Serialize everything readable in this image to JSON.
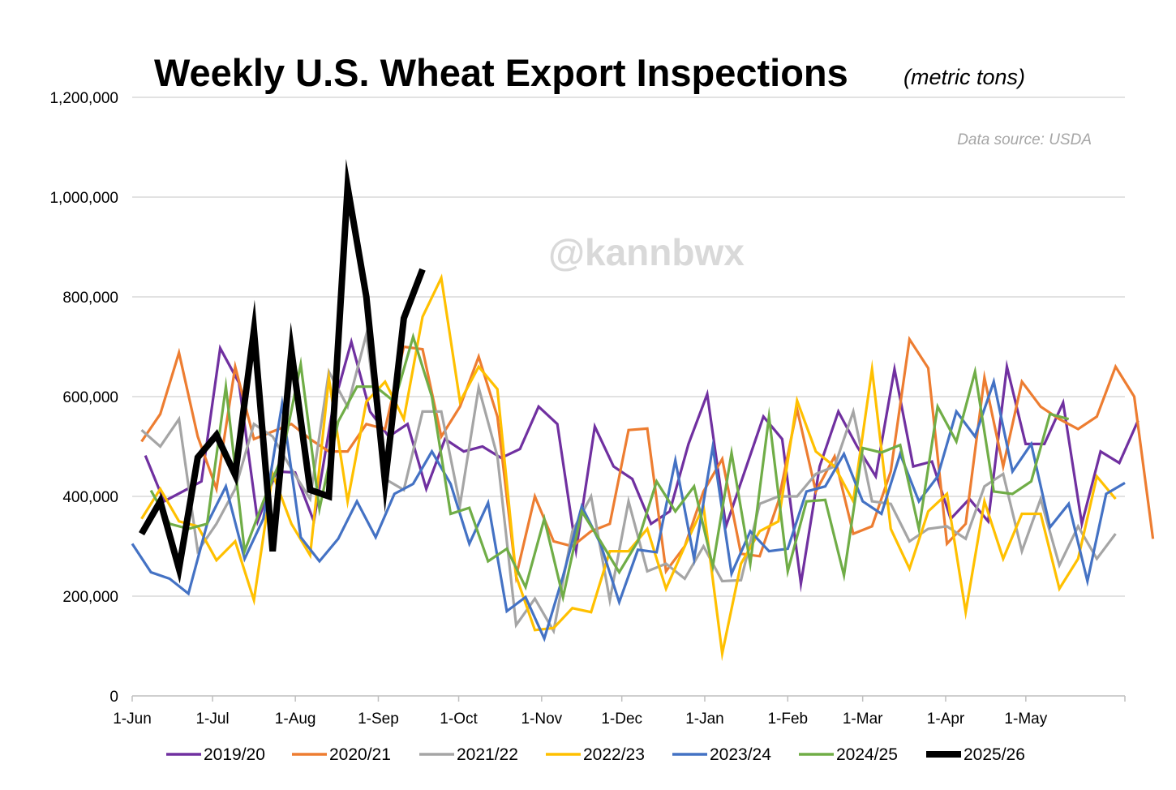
{
  "chart_data": {
    "type": "line",
    "title": "Weekly U.S. Wheat Export Inspections",
    "subtitle": "(metric tons)",
    "source_note": "Data source: USDA",
    "watermark": "@kannbwx",
    "xlabel": "",
    "ylabel": "",
    "ylim": [
      0,
      1200000
    ],
    "y_ticks": [
      0,
      200000,
      400000,
      600000,
      800000,
      1000000,
      1200000
    ],
    "y_tick_labels": [
      "0",
      "200,000",
      "400,000",
      "600,000",
      "800,000",
      "1,000,000",
      "1,200,000"
    ],
    "x_range_weeks": [
      0,
      53
    ],
    "x_ticks": [
      {
        "label": "1-Jun",
        "week": 0
      },
      {
        "label": "1-Jul",
        "week": 4.29
      },
      {
        "label": "1-Aug",
        "week": 8.71
      },
      {
        "label": "1-Sep",
        "week": 13.14
      },
      {
        "label": "1-Oct",
        "week": 17.43
      },
      {
        "label": "1-Nov",
        "week": 21.86
      },
      {
        "label": "1-Dec",
        "week": 26.14
      },
      {
        "label": "1-Jan",
        "week": 30.57
      },
      {
        "label": "1-Feb",
        "week": 35.0
      },
      {
        "label": "1-Mar",
        "week": 39.0
      },
      {
        "label": "1-Apr",
        "week": 43.43
      },
      {
        "label": "1-May",
        "week": 47.71
      }
    ],
    "legend_position": "bottom",
    "grid": true,
    "series": [
      {
        "name": "2019/20",
        "color": "#7030a0",
        "start_week": 0.7,
        "values": [
          482000,
          390000,
          410000,
          430000,
          697000,
          628000,
          350000,
          450000,
          448000,
          350000,
          575000,
          710000,
          570000,
          520000,
          545000,
          415000,
          515000,
          490000,
          500000,
          477000,
          495000,
          580000,
          545000,
          292000,
          540000,
          460000,
          435000,
          345000,
          370000,
          505000,
          605000,
          340000,
          450000,
          560000,
          515000,
          225000,
          460000,
          570000,
          500000,
          440000,
          655000,
          460000,
          470000,
          355000,
          395000,
          350000,
          660000,
          505000,
          505000,
          588000,
          345000,
          490000,
          467000,
          552000
        ]
      },
      {
        "name": "2020/21",
        "color": "#ed7d31",
        "start_week": 0.5,
        "values": [
          510000,
          565000,
          688000,
          520000,
          415000,
          660000,
          515000,
          530000,
          545000,
          515000,
          490000,
          490000,
          545000,
          535000,
          700000,
          695000,
          520000,
          580000,
          680000,
          560000,
          240000,
          400000,
          310000,
          300000,
          330000,
          345000,
          533000,
          536000,
          250000,
          300000,
          410000,
          475000,
          285000,
          280000,
          390000,
          575000,
          410000,
          480000,
          325000,
          340000,
          450000,
          715000,
          657000,
          305000,
          345000,
          638000,
          460000,
          630000,
          580000,
          555000,
          535000,
          560000,
          660000,
          600000,
          315000
        ]
      },
      {
        "name": "2021/22",
        "color": "#a5a5a5",
        "start_week": 0.5,
        "values": [
          533000,
          500000,
          555000,
          290000,
          345000,
          415000,
          545000,
          520000,
          455000,
          395000,
          650000,
          580000,
          725000,
          435000,
          413000,
          570000,
          570000,
          383000,
          618000,
          480000,
          142000,
          195000,
          130000,
          330000,
          400000,
          192000,
          390000,
          250000,
          265000,
          235000,
          300000,
          230000,
          232000,
          385000,
          400000,
          400000,
          445000,
          460000,
          570000,
          390000,
          385000,
          310000,
          335000,
          340000,
          315000,
          420000,
          445000,
          290000,
          395000,
          262000,
          340000,
          275000,
          325000
        ]
      },
      {
        "name": "2022/23",
        "color": "#ffc000",
        "start_week": 0.5,
        "values": [
          355000,
          415000,
          350000,
          340000,
          272000,
          310000,
          192000,
          445000,
          345000,
          282000,
          637000,
          390000,
          590000,
          630000,
          555000,
          760000,
          838000,
          590000,
          660000,
          615000,
          240000,
          132000,
          136000,
          176000,
          168000,
          290000,
          290000,
          335000,
          215000,
          300000,
          380000,
          85000,
          265000,
          330000,
          350000,
          592000,
          490000,
          460000,
          390000,
          655000,
          335000,
          255000,
          370000,
          405000,
          168000,
          390000,
          275000,
          365000,
          365000,
          215000,
          275000,
          440000,
          395000
        ]
      },
      {
        "name": "2023/24",
        "color": "#4472c4",
        "start_week": 0.0,
        "values": [
          305000,
          248000,
          235000,
          205000,
          345000,
          420000,
          275000,
          355000,
          585000,
          318000,
          270000,
          315000,
          390000,
          318000,
          405000,
          425000,
          490000,
          425000,
          305000,
          387000,
          170000,
          198000,
          115000,
          240000,
          380000,
          305000,
          188000,
          293000,
          288000,
          472000,
          275000,
          500000,
          245000,
          330000,
          290000,
          295000,
          410000,
          420000,
          485000,
          390000,
          365000,
          485000,
          390000,
          440000,
          570000,
          520000,
          630000,
          450000,
          505000,
          338000,
          385000,
          230000,
          405000,
          427000
        ]
      },
      {
        "name": "2024/25",
        "color": "#70ad47",
        "start_week": 1.0,
        "values": [
          412000,
          345000,
          335000,
          345000,
          620000,
          290000,
          390000,
          480000,
          665000,
          375000,
          550000,
          620000,
          620000,
          590000,
          720000,
          600000,
          365000,
          377000,
          270000,
          295000,
          218000,
          355000,
          198000,
          370000,
          310000,
          248000,
          310000,
          430000,
          370000,
          420000,
          260000,
          487000,
          265000,
          560000,
          250000,
          390000,
          393000,
          242000,
          497000,
          488000,
          503000,
          335000,
          580000,
          510000,
          650000,
          410000,
          405000,
          430000,
          565000,
          555000
        ]
      },
      {
        "name": "2025/26",
        "color": "#000000",
        "start_week": 0.5,
        "values": [
          325000,
          390000,
          255000,
          478000,
          523000,
          443000,
          733000,
          290000,
          692000,
          413000,
          400000,
          1020000,
          800000,
          428000,
          757000,
          855000
        ]
      }
    ]
  }
}
